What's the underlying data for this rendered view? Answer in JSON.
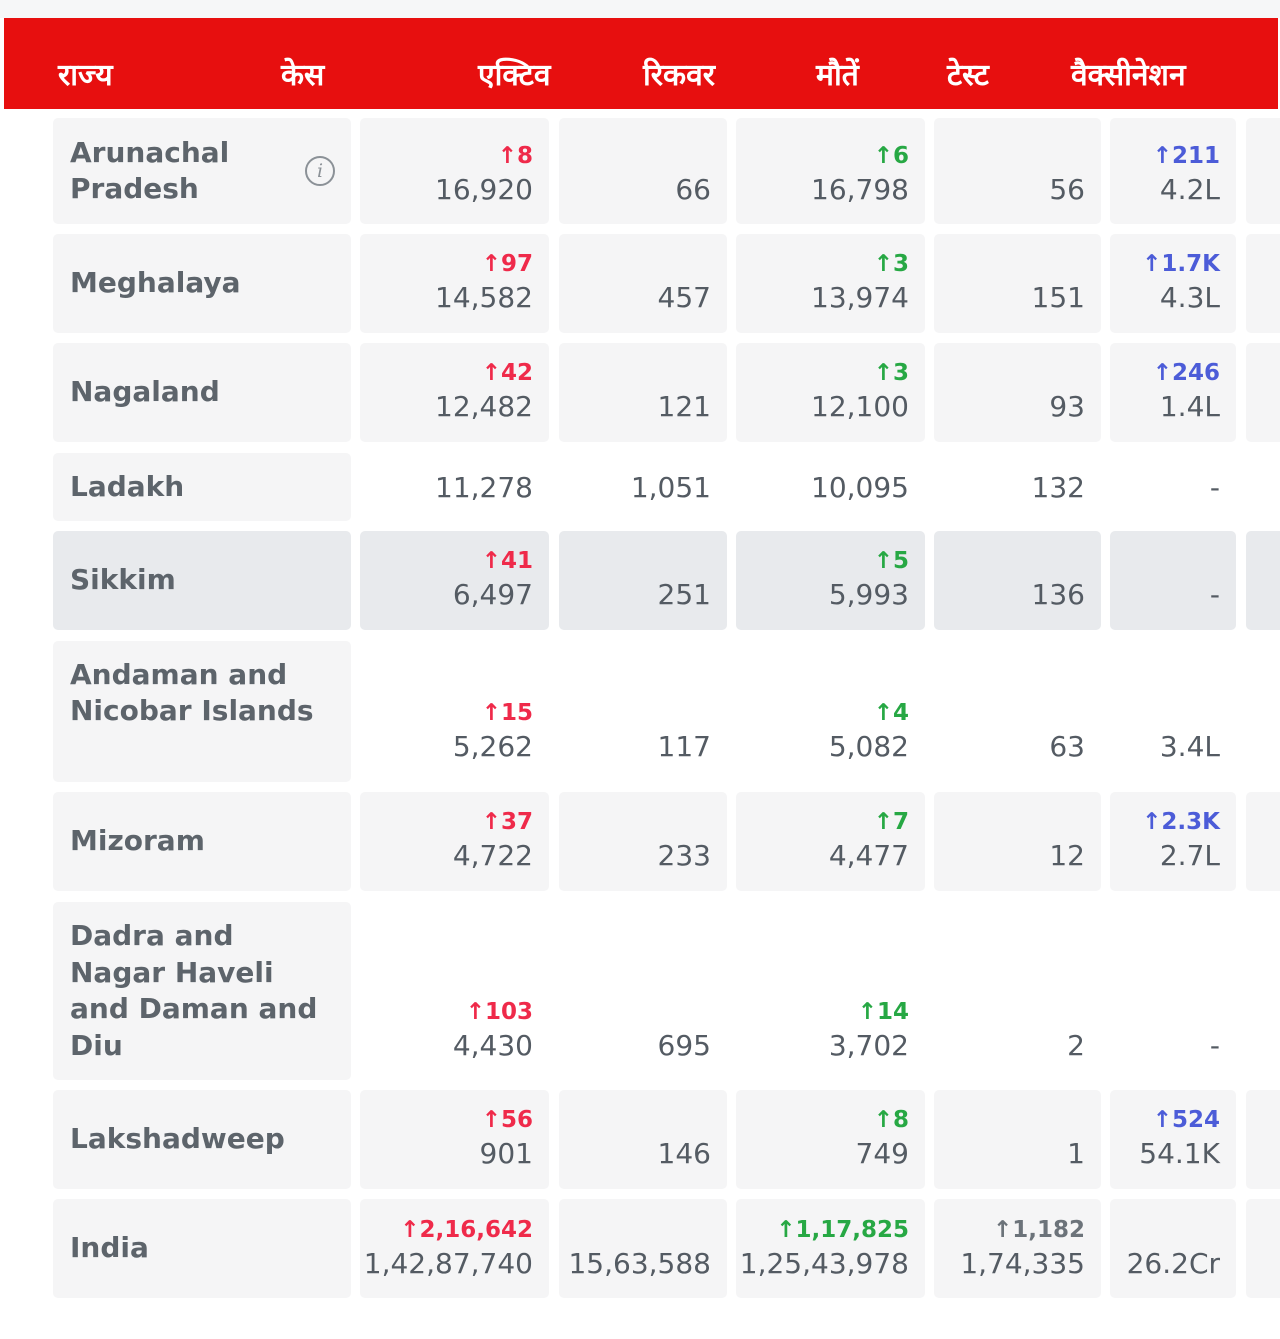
{
  "header": {
    "columns": [
      "राज्य",
      "केस",
      "एक्टिव",
      "रिकवर",
      "मौतें",
      "टेस्ट",
      "वैक्सीनेशन"
    ]
  },
  "rows": [
    {
      "state": "Arunachal Pradesh",
      "info": true,
      "cases_delta": "↑8",
      "cases": "16,920",
      "active": "66",
      "recovered_delta": "↑6",
      "recovered": "16,798",
      "deaths": "56",
      "deaths_delta": "",
      "vacc_delta": "↑211",
      "vacc": "4.2L"
    },
    {
      "state": "Meghalaya",
      "info": false,
      "cases_delta": "↑97",
      "cases": "14,582",
      "active": "457",
      "recovered_delta": "↑3",
      "recovered": "13,974",
      "deaths": "151",
      "deaths_delta": "",
      "vacc_delta": "↑1.7K",
      "vacc": "4.3L"
    },
    {
      "state": "Nagaland",
      "info": false,
      "cases_delta": "↑42",
      "cases": "12,482",
      "active": "121",
      "recovered_delta": "↑3",
      "recovered": "12,100",
      "deaths": "93",
      "deaths_delta": "",
      "vacc_delta": "↑246",
      "vacc": "1.4L"
    },
    {
      "state": "Ladakh",
      "info": false,
      "cases_delta": "",
      "cases": "11,278",
      "active": "1,051",
      "recovered_delta": "",
      "recovered": "10,095",
      "deaths": "132",
      "deaths_delta": "",
      "vacc_delta": "",
      "vacc": "-"
    },
    {
      "state": "Sikkim",
      "info": false,
      "cases_delta": "↑41",
      "cases": "6,497",
      "active": "251",
      "recovered_delta": "↑5",
      "recovered": "5,993",
      "deaths": "136",
      "deaths_delta": "",
      "vacc_delta": "",
      "vacc": "-"
    },
    {
      "state": "Andaman and Nicobar Islands",
      "info": false,
      "cases_delta": "↑15",
      "cases": "5,262",
      "active": "117",
      "recovered_delta": "↑4",
      "recovered": "5,082",
      "deaths": "63",
      "deaths_delta": "",
      "vacc_delta": "",
      "vacc": "3.4L"
    },
    {
      "state": "Mizoram",
      "info": false,
      "cases_delta": "↑37",
      "cases": "4,722",
      "active": "233",
      "recovered_delta": "↑7",
      "recovered": "4,477",
      "deaths": "12",
      "deaths_delta": "",
      "vacc_delta": "↑2.3K",
      "vacc": "2.7L"
    },
    {
      "state": "Dadra and Nagar Haveli and Daman and Diu",
      "info": false,
      "cases_delta": "↑103",
      "cases": "4,430",
      "active": "695",
      "recovered_delta": "↑14",
      "recovered": "3,702",
      "deaths": "2",
      "deaths_delta": "",
      "vacc_delta": "",
      "vacc": "-"
    },
    {
      "state": "Lakshadweep",
      "info": false,
      "cases_delta": "↑56",
      "cases": "901",
      "active": "146",
      "recovered_delta": "↑8",
      "recovered": "749",
      "deaths": "1",
      "deaths_delta": "",
      "vacc_delta": "↑524",
      "vacc": "54.1K"
    },
    {
      "state": "India",
      "info": false,
      "cases_delta": "↑2,16,642",
      "cases": "1,42,87,740",
      "active": "15,63,588",
      "recovered_delta": "↑1,17,825",
      "recovered": "1,25,43,978",
      "deaths": "1,74,335",
      "deaths_delta": "↑1,182",
      "vacc_delta": "",
      "vacc": "26.2Cr"
    }
  ],
  "colors": {
    "header_bg": "#e70f0f",
    "cases_delta": "#ef2a4a",
    "recovered_delta": "#27a844",
    "vacc_delta": "#4c5cd8"
  }
}
